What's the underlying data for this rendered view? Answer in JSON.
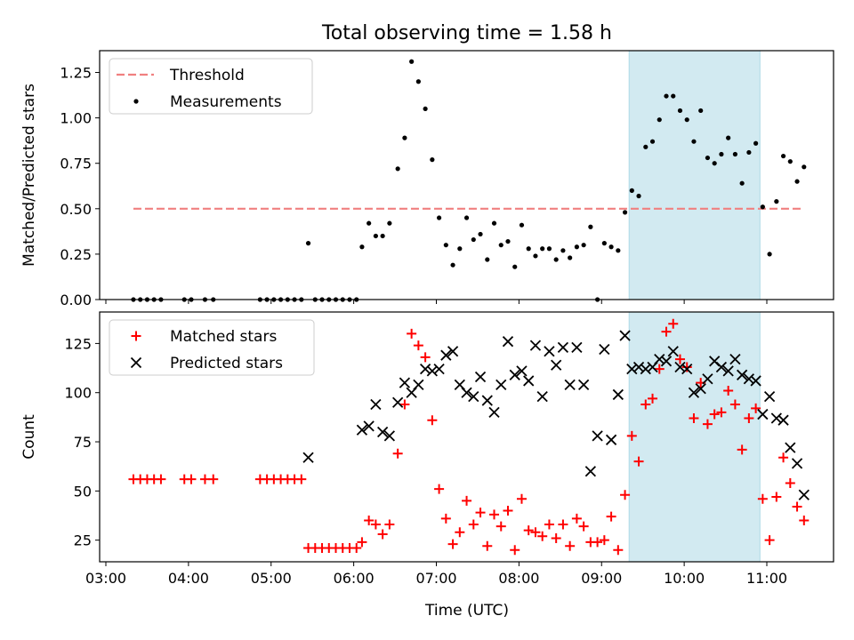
{
  "figure": {
    "title": "Total observing time = 1.58 h",
    "xlabel": "Time (UTC)",
    "x_ticks": [
      "03:00",
      "04:00",
      "05:00",
      "06:00",
      "07:00",
      "08:00",
      "09:00",
      "10:00",
      "11:00"
    ],
    "highlight_span": {
      "start": "09:20",
      "end": "10:55",
      "color": "#add8e6"
    }
  },
  "chart_data": [
    {
      "type": "scatter",
      "ylabel": "Matched/Predicted stars",
      "ylim": [
        0,
        1.37
      ],
      "y_ticks": [
        "0.00",
        "0.25",
        "0.50",
        "0.75",
        "1.00",
        "1.25"
      ],
      "legend": {
        "position": "top-left",
        "entries": [
          {
            "name": "Threshold",
            "style": "dashed-line",
            "color": "#f08080"
          },
          {
            "name": "Measurements",
            "style": "dot",
            "color": "#000000"
          }
        ]
      },
      "threshold": {
        "name": "Threshold",
        "value": 0.5,
        "x_start": "03:20",
        "x_end": "11:27",
        "color": "#f08080"
      },
      "series": [
        {
          "name": "Measurements",
          "color": "#000000",
          "points": [
            [
              "03:20",
              0
            ],
            [
              "03:25",
              0
            ],
            [
              "03:30",
              0
            ],
            [
              "03:35",
              0
            ],
            [
              "03:40",
              0
            ],
            [
              "03:57",
              0
            ],
            [
              "04:02",
              0
            ],
            [
              "04:12",
              0
            ],
            [
              "04:18",
              0
            ],
            [
              "04:52",
              0
            ],
            [
              "04:57",
              0
            ],
            [
              "05:02",
              0
            ],
            [
              "05:07",
              0
            ],
            [
              "05:12",
              0
            ],
            [
              "05:17",
              0
            ],
            [
              "05:22",
              0
            ],
            [
              "05:27",
              0.31
            ],
            [
              "05:32",
              0
            ],
            [
              "05:37",
              0
            ],
            [
              "05:42",
              0
            ],
            [
              "05:47",
              0
            ],
            [
              "05:52",
              0
            ],
            [
              "05:57",
              0
            ],
            [
              "06:02",
              0
            ],
            [
              "06:06",
              0.29
            ],
            [
              "06:11",
              0.42
            ],
            [
              "06:16",
              0.35
            ],
            [
              "06:21",
              0.35
            ],
            [
              "06:26",
              0.42
            ],
            [
              "06:32",
              0.72
            ],
            [
              "06:37",
              0.89
            ],
            [
              "06:42",
              1.31
            ],
            [
              "06:47",
              1.2
            ],
            [
              "06:52",
              1.05
            ],
            [
              "06:57",
              0.77
            ],
            [
              "07:02",
              0.45
            ],
            [
              "07:07",
              0.3
            ],
            [
              "07:12",
              0.19
            ],
            [
              "07:17",
              0.28
            ],
            [
              "07:22",
              0.45
            ],
            [
              "07:27",
              0.33
            ],
            [
              "07:32",
              0.36
            ],
            [
              "07:37",
              0.22
            ],
            [
              "07:42",
              0.42
            ],
            [
              "07:47",
              0.3
            ],
            [
              "07:52",
              0.32
            ],
            [
              "07:57",
              0.18
            ],
            [
              "08:02",
              0.41
            ],
            [
              "08:07",
              0.28
            ],
            [
              "08:12",
              0.24
            ],
            [
              "08:17",
              0.28
            ],
            [
              "08:22",
              0.28
            ],
            [
              "08:27",
              0.22
            ],
            [
              "08:32",
              0.27
            ],
            [
              "08:37",
              0.23
            ],
            [
              "08:42",
              0.29
            ],
            [
              "08:47",
              0.3
            ],
            [
              "08:52",
              0.4
            ],
            [
              "08:57",
              0
            ],
            [
              "09:02",
              0.31
            ],
            [
              "09:07",
              0.29
            ],
            [
              "09:12",
              0.27
            ],
            [
              "09:17",
              0.48
            ],
            [
              "09:22",
              0.6
            ],
            [
              "09:27",
              0.57
            ],
            [
              "09:32",
              0.84
            ],
            [
              "09:37",
              0.87
            ],
            [
              "09:42",
              0.99
            ],
            [
              "09:47",
              1.12
            ],
            [
              "09:52",
              1.12
            ],
            [
              "09:57",
              1.04
            ],
            [
              "10:02",
              0.99
            ],
            [
              "10:07",
              0.87
            ],
            [
              "10:12",
              1.04
            ],
            [
              "10:17",
              0.78
            ],
            [
              "10:22",
              0.75
            ],
            [
              "10:27",
              0.8
            ],
            [
              "10:32",
              0.89
            ],
            [
              "10:37",
              0.8
            ],
            [
              "10:42",
              0.64
            ],
            [
              "10:47",
              0.81
            ],
            [
              "10:52",
              0.86
            ],
            [
              "10:57",
              0.51
            ],
            [
              "11:02",
              0.25
            ],
            [
              "11:07",
              0.54
            ],
            [
              "11:12",
              0.79
            ],
            [
              "11:17",
              0.76
            ],
            [
              "11:22",
              0.65
            ],
            [
              "11:27",
              0.73
            ]
          ]
        }
      ]
    },
    {
      "type": "scatter",
      "ylabel": "Count",
      "ylim": [
        14,
        141
      ],
      "y_ticks": [
        "25",
        "50",
        "75",
        "100",
        "125"
      ],
      "legend": {
        "position": "top-left",
        "entries": [
          {
            "name": "Matched stars",
            "style": "plus",
            "color": "#ff0000"
          },
          {
            "name": "Predicted stars",
            "style": "cross",
            "color": "#000000"
          }
        ]
      },
      "series": [
        {
          "name": "Matched stars",
          "marker": "plus",
          "color": "#ff0000",
          "points": [
            [
              "03:20",
              56
            ],
            [
              "03:25",
              56
            ],
            [
              "03:30",
              56
            ],
            [
              "03:35",
              56
            ],
            [
              "03:40",
              56
            ],
            [
              "03:57",
              56
            ],
            [
              "04:02",
              56
            ],
            [
              "04:12",
              56
            ],
            [
              "04:18",
              56
            ],
            [
              "04:52",
              56
            ],
            [
              "04:57",
              56
            ],
            [
              "05:02",
              56
            ],
            [
              "05:07",
              56
            ],
            [
              "05:12",
              56
            ],
            [
              "05:17",
              56
            ],
            [
              "05:22",
              56
            ],
            [
              "05:27",
              21
            ],
            [
              "05:32",
              21
            ],
            [
              "05:37",
              21
            ],
            [
              "05:42",
              21
            ],
            [
              "05:47",
              21
            ],
            [
              "05:52",
              21
            ],
            [
              "05:57",
              21
            ],
            [
              "06:02",
              21
            ],
            [
              "06:06",
              24
            ],
            [
              "06:11",
              35
            ],
            [
              "06:16",
              33
            ],
            [
              "06:21",
              28
            ],
            [
              "06:26",
              33
            ],
            [
              "06:32",
              69
            ],
            [
              "06:37",
              94
            ],
            [
              "06:42",
              130
            ],
            [
              "06:47",
              124
            ],
            [
              "06:52",
              118
            ],
            [
              "06:57",
              86
            ],
            [
              "07:02",
              51
            ],
            [
              "07:07",
              36
            ],
            [
              "07:12",
              23
            ],
            [
              "07:17",
              29
            ],
            [
              "07:22",
              45
            ],
            [
              "07:27",
              33
            ],
            [
              "07:32",
              39
            ],
            [
              "07:37",
              22
            ],
            [
              "07:42",
              38
            ],
            [
              "07:47",
              32
            ],
            [
              "07:52",
              40
            ],
            [
              "07:57",
              20
            ],
            [
              "08:02",
              46
            ],
            [
              "08:07",
              30
            ],
            [
              "08:12",
              29
            ],
            [
              "08:17",
              27
            ],
            [
              "08:22",
              33
            ],
            [
              "08:27",
              26
            ],
            [
              "08:32",
              33
            ],
            [
              "08:37",
              22
            ],
            [
              "08:42",
              36
            ],
            [
              "08:47",
              32
            ],
            [
              "08:52",
              24
            ],
            [
              "08:57",
              24
            ],
            [
              "09:02",
              25
            ],
            [
              "09:07",
              37
            ],
            [
              "09:12",
              20
            ],
            [
              "09:17",
              48
            ],
            [
              "09:22",
              78
            ],
            [
              "09:27",
              65
            ],
            [
              "09:32",
              94
            ],
            [
              "09:37",
              97
            ],
            [
              "09:42",
              112
            ],
            [
              "09:47",
              131
            ],
            [
              "09:52",
              135
            ],
            [
              "09:57",
              117
            ],
            [
              "10:02",
              113
            ],
            [
              "10:07",
              87
            ],
            [
              "10:12",
              105
            ],
            [
              "10:17",
              84
            ],
            [
              "10:22",
              89
            ],
            [
              "10:27",
              90
            ],
            [
              "10:32",
              101
            ],
            [
              "10:37",
              94
            ],
            [
              "10:42",
              71
            ],
            [
              "10:47",
              87
            ],
            [
              "10:52",
              92
            ],
            [
              "10:57",
              46
            ],
            [
              "11:02",
              25
            ],
            [
              "11:07",
              47
            ],
            [
              "11:12",
              67
            ],
            [
              "11:17",
              54
            ],
            [
              "11:22",
              42
            ],
            [
              "11:27",
              35
            ]
          ]
        },
        {
          "name": "Predicted stars",
          "marker": "cross",
          "color": "#000000",
          "points": [
            [
              "05:27",
              67
            ],
            [
              "06:06",
              81
            ],
            [
              "06:11",
              83
            ],
            [
              "06:16",
              94
            ],
            [
              "06:21",
              80
            ],
            [
              "06:26",
              78
            ],
            [
              "06:32",
              95
            ],
            [
              "06:37",
              105
            ],
            [
              "06:42",
              100
            ],
            [
              "06:47",
              104
            ],
            [
              "06:52",
              112
            ],
            [
              "06:57",
              111
            ],
            [
              "07:02",
              112
            ],
            [
              "07:07",
              119
            ],
            [
              "07:12",
              121
            ],
            [
              "07:17",
              104
            ],
            [
              "07:22",
              100
            ],
            [
              "07:27",
              98
            ],
            [
              "07:32",
              108
            ],
            [
              "07:37",
              96
            ],
            [
              "07:42",
              90
            ],
            [
              "07:47",
              104
            ],
            [
              "07:52",
              126
            ],
            [
              "07:57",
              109
            ],
            [
              "08:02",
              111
            ],
            [
              "08:07",
              106
            ],
            [
              "08:12",
              124
            ],
            [
              "08:17",
              98
            ],
            [
              "08:22",
              121
            ],
            [
              "08:27",
              114
            ],
            [
              "08:32",
              123
            ],
            [
              "08:37",
              104
            ],
            [
              "08:42",
              123
            ],
            [
              "08:47",
              104
            ],
            [
              "08:52",
              60
            ],
            [
              "08:57",
              78
            ],
            [
              "09:02",
              122
            ],
            [
              "09:07",
              76
            ],
            [
              "09:12",
              99
            ],
            [
              "09:17",
              129
            ],
            [
              "09:22",
              112
            ],
            [
              "09:27",
              113
            ],
            [
              "09:32",
              112
            ],
            [
              "09:37",
              113
            ],
            [
              "09:42",
              117
            ],
            [
              "09:47",
              116
            ],
            [
              "09:52",
              121
            ],
            [
              "09:57",
              113
            ],
            [
              "10:02",
              112
            ],
            [
              "10:07",
              100
            ],
            [
              "10:12",
              102
            ],
            [
              "10:17",
              107
            ],
            [
              "10:22",
              116
            ],
            [
              "10:27",
              113
            ],
            [
              "10:32",
              111
            ],
            [
              "10:37",
              117
            ],
            [
              "10:42",
              109
            ],
            [
              "10:47",
              107
            ],
            [
              "10:52",
              106
            ],
            [
              "10:57",
              89
            ],
            [
              "11:02",
              98
            ],
            [
              "11:07",
              87
            ],
            [
              "11:12",
              86
            ],
            [
              "11:17",
              72
            ],
            [
              "11:22",
              64
            ],
            [
              "11:27",
              48
            ]
          ]
        }
      ]
    }
  ]
}
